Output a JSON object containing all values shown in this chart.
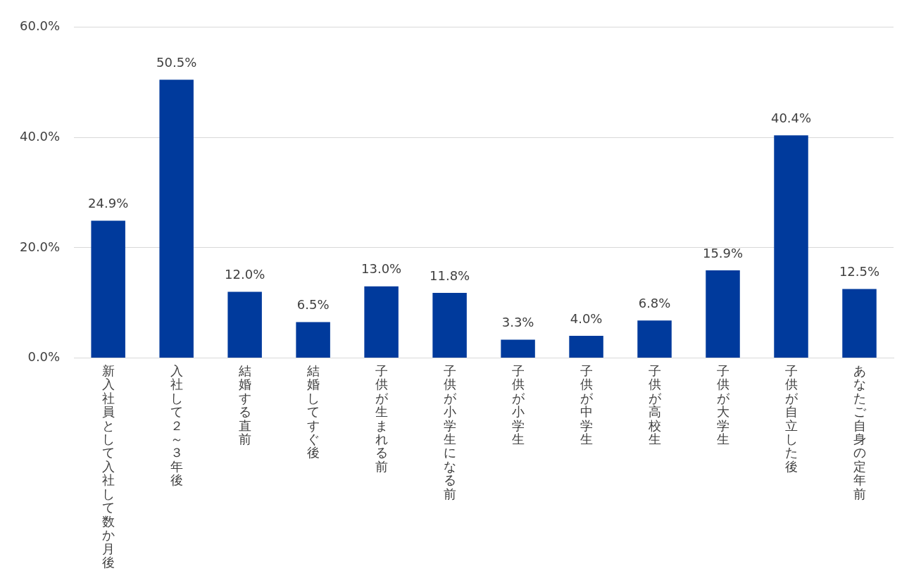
{
  "chart_data": {
    "type": "bar",
    "categories": [
      "新入社員として入社して数か月後",
      "入社して２～３年後",
      "結婚する直前",
      "結婚してすぐ後",
      "子供が生まれる前",
      "子供が小学生になる前",
      "子供が小学生",
      "子供が中学生",
      "子供が高校生",
      "子供が大学生",
      "子供が自立した後",
      "あなたご自身の定年前"
    ],
    "values": [
      24.9,
      50.5,
      12.0,
      6.5,
      13.0,
      11.8,
      3.3,
      4.0,
      6.8,
      15.9,
      40.4,
      12.5
    ],
    "value_labels": [
      "24.9%",
      "50.5%",
      "12.0%",
      "6.5%",
      "13.0%",
      "11.8%",
      "3.3%",
      "4.0%",
      "6.8%",
      "15.9%",
      "40.4%",
      "12.5%"
    ],
    "color": "#003a9c",
    "ylim": [
      0,
      60
    ],
    "yticks": [
      {
        "value": 0,
        "label": "0.0%"
      },
      {
        "value": 20,
        "label": "20.0%"
      },
      {
        "value": 40,
        "label": "40.0%"
      },
      {
        "value": 60,
        "label": "60.0%"
      }
    ],
    "grid": "y"
  }
}
